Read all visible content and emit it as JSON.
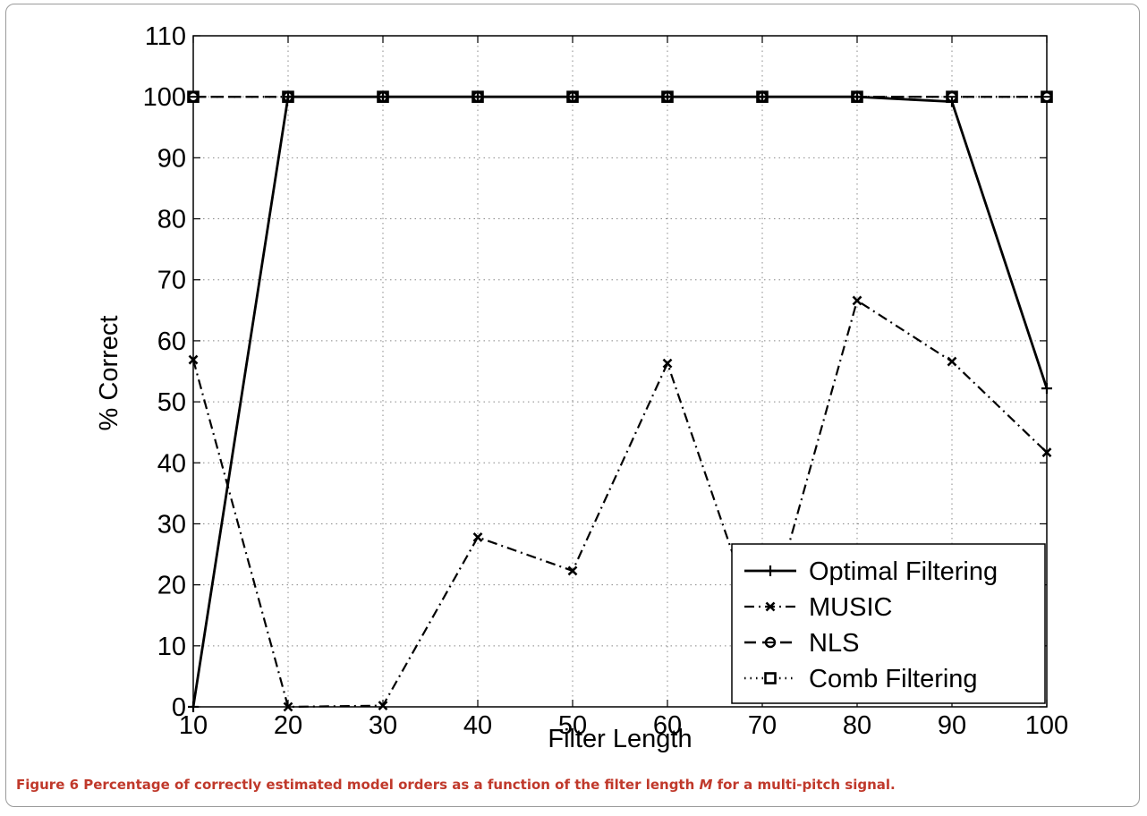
{
  "caption": {
    "label": "Figure 6",
    "text_before": " Percentage of correctly estimated model orders as a function of the filter length ",
    "variable": "M",
    "text_after": " for a multi-pitch signal",
    "end": "."
  },
  "chart_data": {
    "type": "line",
    "xlabel": "Filter Length",
    "ylabel": "% Correct",
    "xlim": [
      10,
      100
    ],
    "ylim": [
      0,
      110
    ],
    "xticks": [
      10,
      20,
      30,
      40,
      50,
      60,
      70,
      80,
      90,
      100
    ],
    "yticks": [
      0,
      10,
      20,
      30,
      40,
      50,
      60,
      70,
      80,
      90,
      100,
      110
    ],
    "grid": true,
    "legend_position": "bottom-right",
    "x": [
      10,
      20,
      30,
      40,
      50,
      60,
      70,
      80,
      90,
      100
    ],
    "series": [
      {
        "name": "Optimal Filtering",
        "line": "solid",
        "marker": "plus",
        "values": [
          0,
          100,
          100,
          100,
          100,
          100,
          100,
          100,
          99.2,
          52.2
        ]
      },
      {
        "name": "MUSIC",
        "line": "dashdot",
        "marker": "x",
        "values": [
          56.9,
          0,
          0.2,
          27.8,
          22.3,
          56.3,
          11,
          66.6,
          56.6,
          41.7
        ]
      },
      {
        "name": "NLS",
        "line": "dashed",
        "marker": "circle",
        "values": [
          100,
          100,
          100,
          100,
          100,
          100,
          100,
          100,
          100,
          100
        ]
      },
      {
        "name": "Comb Filtering",
        "line": "dotted",
        "marker": "square",
        "values": [
          100,
          100,
          100,
          100,
          100,
          100,
          100,
          100,
          100,
          100
        ]
      }
    ]
  }
}
